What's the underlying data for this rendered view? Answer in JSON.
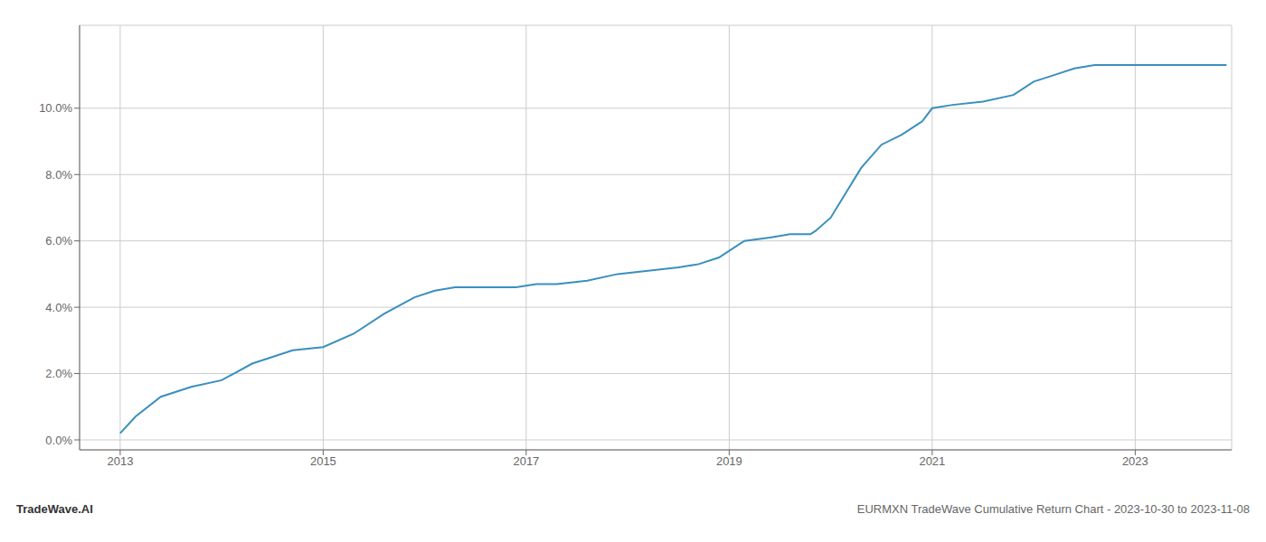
{
  "chart_data": {
    "type": "line",
    "title": "EURMXN TradeWave Cumulative Return Chart - 2023-10-30 to 2023-11-08",
    "annotations": [
      "TradeWave.AI"
    ],
    "x": [
      2013.0,
      2013.15,
      2013.4,
      2013.7,
      2014.0,
      2014.3,
      2014.7,
      2015.0,
      2015.3,
      2015.6,
      2015.9,
      2016.1,
      2016.3,
      2016.5,
      2016.7,
      2016.9,
      2017.1,
      2017.3,
      2017.6,
      2017.9,
      2018.2,
      2018.5,
      2018.7,
      2018.9,
      2019.0,
      2019.15,
      2019.4,
      2019.6,
      2019.8,
      2019.85,
      2020.0,
      2020.3,
      2020.5,
      2020.7,
      2020.9,
      2021.0,
      2021.2,
      2021.5,
      2021.8,
      2022.0,
      2022.2,
      2022.4,
      2022.6,
      2022.8,
      2023.0,
      2023.3,
      2023.7,
      2023.9
    ],
    "values": [
      0.002,
      0.007,
      0.013,
      0.016,
      0.018,
      0.023,
      0.027,
      0.028,
      0.032,
      0.038,
      0.043,
      0.045,
      0.046,
      0.046,
      0.046,
      0.046,
      0.047,
      0.047,
      0.048,
      0.05,
      0.051,
      0.052,
      0.053,
      0.055,
      0.057,
      0.06,
      0.061,
      0.062,
      0.062,
      0.063,
      0.067,
      0.082,
      0.089,
      0.092,
      0.096,
      0.1,
      0.101,
      0.102,
      0.104,
      0.108,
      0.11,
      0.112,
      0.113,
      0.113,
      0.113,
      0.113,
      0.113,
      0.113
    ],
    "color": "#3a8fbf",
    "xlim": [
      2012.6,
      2023.95
    ],
    "ylim": [
      -0.003,
      0.125
    ],
    "xticks": [
      2013,
      2015,
      2017,
      2019,
      2021,
      2023
    ],
    "yticks": [
      {
        "value": 0.0,
        "label": "0.0%"
      },
      {
        "value": 0.02,
        "label": "2.0%"
      },
      {
        "value": 0.04,
        "label": "4.0%"
      },
      {
        "value": 0.06,
        "label": "6.0%"
      },
      {
        "value": 0.08,
        "label": "8.0%"
      },
      {
        "value": 0.1,
        "label": "10.0%"
      }
    ],
    "grid": true
  }
}
